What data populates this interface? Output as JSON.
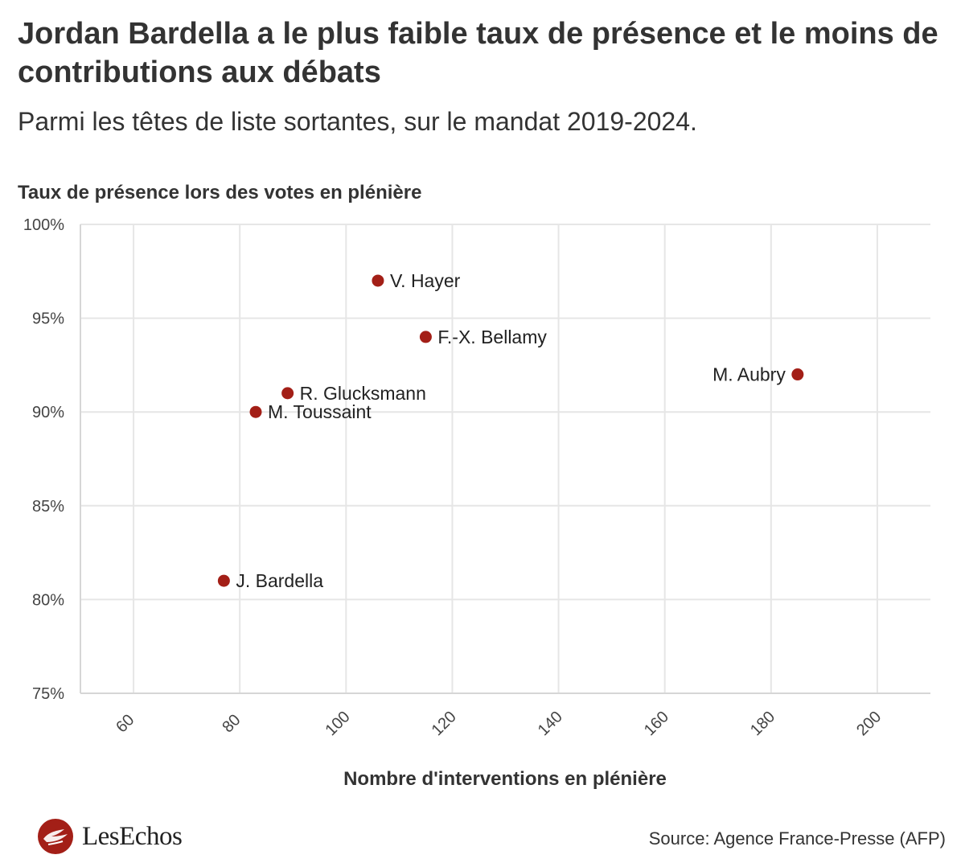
{
  "header": {
    "title": "Jordan Bardella a le plus faible taux de présence et le moins de contributions aux débats",
    "subtitle": "Parmi les têtes de liste sortantes, sur le mandat 2019-2024."
  },
  "chart_data": {
    "type": "scatter",
    "ylabel": "Taux de présence lors des votes en plénière",
    "xlabel": "Nombre d'interventions en plénière",
    "xlim": [
      50,
      210
    ],
    "ylim": [
      75,
      100
    ],
    "x_ticks": [
      60,
      80,
      100,
      120,
      140,
      160,
      180,
      200
    ],
    "y_ticks": [
      75,
      80,
      85,
      90,
      95,
      100
    ],
    "y_tick_labels": [
      "75%",
      "80%",
      "85%",
      "90%",
      "95%",
      "100%"
    ],
    "point_color": "#a31f17",
    "points": [
      {
        "label": "V. Hayer",
        "x": 106,
        "y": 97,
        "label_side": "right"
      },
      {
        "label": "F.-X. Bellamy",
        "x": 115,
        "y": 94,
        "label_side": "right"
      },
      {
        "label": "M. Aubry",
        "x": 185,
        "y": 92,
        "label_side": "left"
      },
      {
        "label": "R. Glucksmann",
        "x": 89,
        "y": 91,
        "label_side": "right"
      },
      {
        "label": "M. Toussaint",
        "x": 83,
        "y": 90,
        "label_side": "right"
      },
      {
        "label": "J. Bardella",
        "x": 77,
        "y": 81,
        "label_side": "right"
      }
    ]
  },
  "footer": {
    "logo_text": "LesEchos",
    "source": "Source: Agence France-Presse (AFP)"
  }
}
